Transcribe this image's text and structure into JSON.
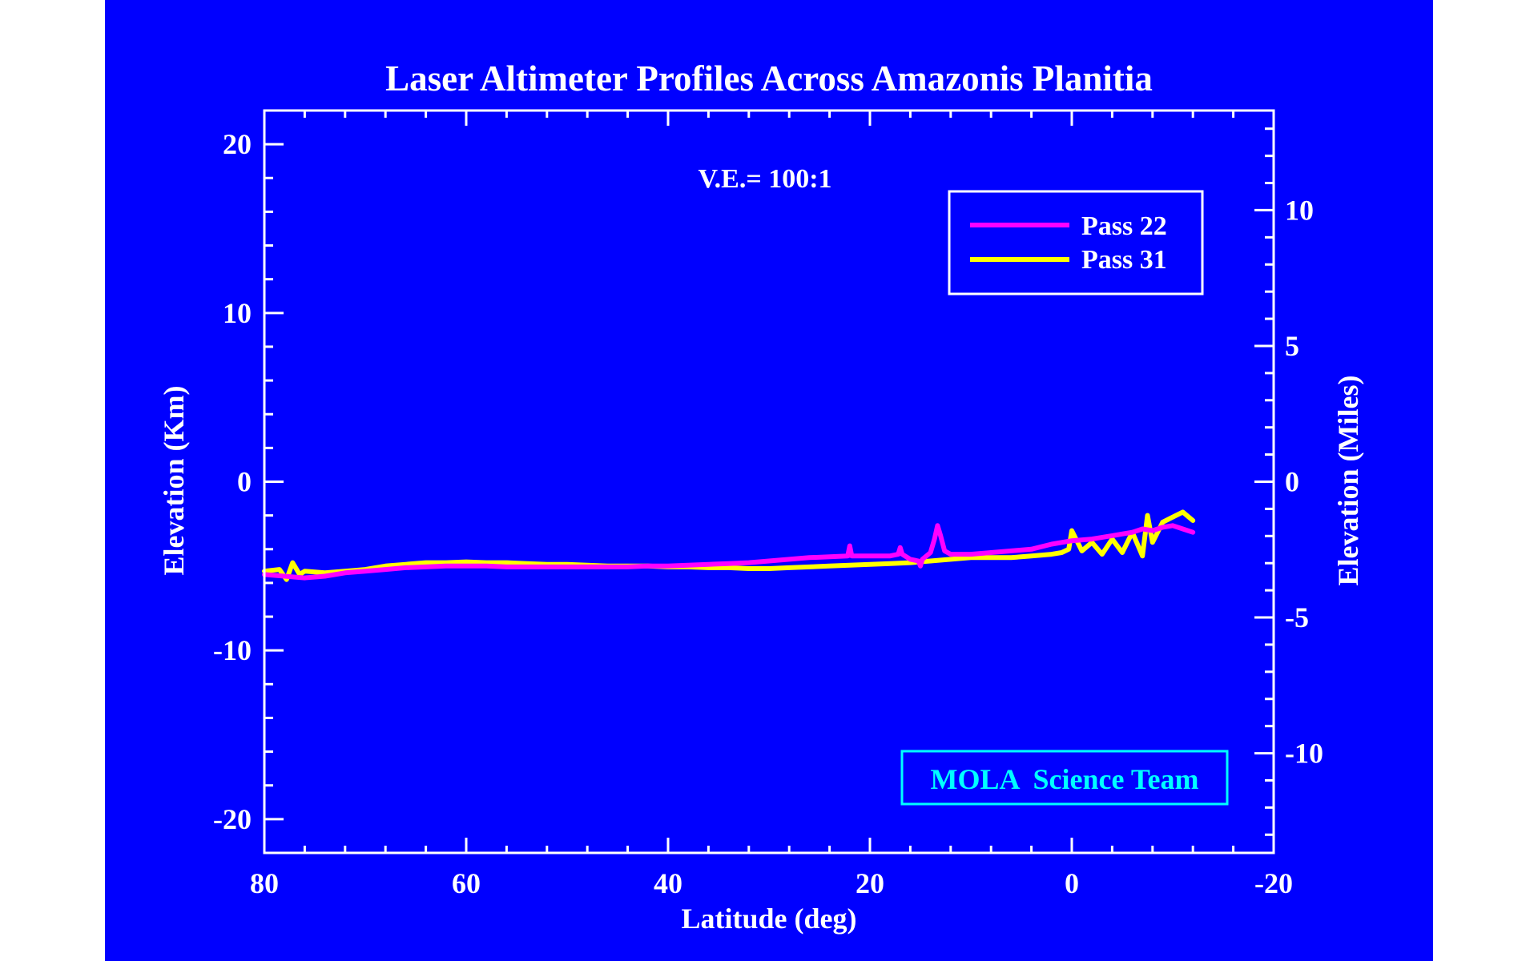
{
  "chart_data": {
    "type": "line",
    "title": "Laser Altimeter Profiles Across Amazonis Planitia",
    "annotation": "V.E.= 100:1",
    "credit": "MOLA  Science Team",
    "xlabel": "Latitude (deg)",
    "ylabel": "Elevation (Km)",
    "y2label": "Elevation (Miles)",
    "xlim": [
      80,
      -20
    ],
    "ylim": [
      -22,
      22
    ],
    "y2lim": [
      -13.67,
      13.67
    ],
    "xticks": [
      80,
      60,
      40,
      20,
      0,
      -20
    ],
    "yticks": [
      20,
      10,
      0,
      -10,
      -20
    ],
    "y2ticks": [
      10,
      5,
      0,
      -5,
      -10
    ],
    "legend_placement": "top-right",
    "colors": {
      "background": "#0000ff",
      "axes": "#ffffff",
      "credit": "#00ffff"
    },
    "series": [
      {
        "name": "Pass 22",
        "color": "#ff00ff",
        "x": [
          80,
          78,
          76,
          74,
          72,
          70,
          68,
          66,
          64,
          62,
          60,
          58,
          56,
          54,
          52,
          50,
          48,
          46,
          44,
          42,
          40,
          38,
          36,
          34,
          32,
          30,
          28,
          26,
          24,
          22.2,
          22.0,
          21.8,
          20,
          18,
          17.2,
          17.0,
          16.8,
          16,
          15.2,
          15.0,
          14.8,
          14,
          13.6,
          13.3,
          13.0,
          12.6,
          12,
          10,
          8,
          6,
          4,
          2,
          0,
          -2,
          -4,
          -6,
          -7,
          -8,
          -9,
          -10,
          -11,
          -12
        ],
        "y": [
          -5.5,
          -5.6,
          -5.7,
          -5.6,
          -5.4,
          -5.3,
          -5.2,
          -5.1,
          -5.05,
          -5.0,
          -5.0,
          -5.0,
          -5.05,
          -5.05,
          -5.05,
          -5.05,
          -5.05,
          -5.05,
          -5.05,
          -5.0,
          -5.0,
          -4.95,
          -4.9,
          -4.85,
          -4.8,
          -4.7,
          -4.6,
          -4.5,
          -4.45,
          -4.4,
          -3.8,
          -4.4,
          -4.4,
          -4.4,
          -4.3,
          -3.9,
          -4.3,
          -4.6,
          -4.7,
          -5.0,
          -4.6,
          -4.2,
          -3.4,
          -2.6,
          -3.2,
          -4.1,
          -4.3,
          -4.3,
          -4.2,
          -4.1,
          -4.0,
          -3.7,
          -3.5,
          -3.4,
          -3.2,
          -3.0,
          -2.8,
          -2.9,
          -2.7,
          -2.6,
          -2.8,
          -3.0
        ]
      },
      {
        "name": "Pass 31",
        "color": "#ffff00",
        "x": [
          80,
          78.5,
          77.8,
          77.2,
          76.5,
          76,
          74,
          72,
          70,
          68,
          66,
          64,
          62,
          60,
          58,
          56,
          54,
          52,
          50,
          48,
          46,
          44,
          42,
          40,
          38,
          36,
          34,
          32,
          30,
          28,
          26,
          24,
          22,
          20,
          18,
          16,
          14,
          12,
          10,
          8,
          6,
          4,
          2,
          1,
          0.3,
          0,
          -1,
          -2,
          -3,
          -4,
          -5,
          -6,
          -7,
          -7.5,
          -8,
          -9,
          -10,
          -11,
          -12
        ],
        "y": [
          -5.3,
          -5.2,
          -5.8,
          -4.8,
          -5.5,
          -5.3,
          -5.4,
          -5.3,
          -5.2,
          -5.0,
          -4.9,
          -4.8,
          -4.8,
          -4.75,
          -4.8,
          -4.8,
          -4.85,
          -4.9,
          -4.9,
          -4.95,
          -5.0,
          -5.0,
          -5.0,
          -5.05,
          -5.05,
          -5.1,
          -5.1,
          -5.15,
          -5.15,
          -5.1,
          -5.05,
          -5.0,
          -4.95,
          -4.9,
          -4.85,
          -4.8,
          -4.7,
          -4.6,
          -4.5,
          -4.5,
          -4.5,
          -4.4,
          -4.3,
          -4.2,
          -4.0,
          -2.9,
          -4.1,
          -3.6,
          -4.3,
          -3.4,
          -4.2,
          -3.0,
          -4.4,
          -2.0,
          -3.6,
          -2.4,
          -2.1,
          -1.8,
          -2.3
        ]
      }
    ]
  }
}
